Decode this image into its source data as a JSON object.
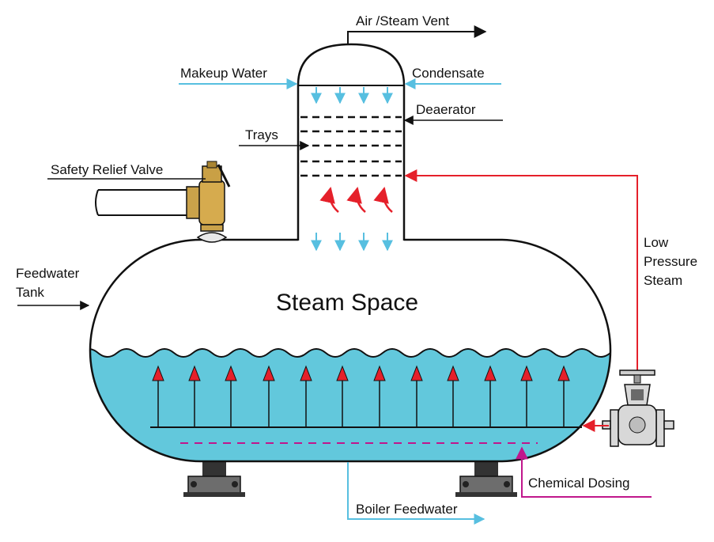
{
  "labels": {
    "air_vent": "Air /Steam Vent",
    "makeup_water": "Makeup Water",
    "condensate": "Condensate",
    "deaerator": "Deaerator",
    "trays": "Trays",
    "safety_valve": "Safety Relief  Valve",
    "feedwater_tank_1": "Feedwater",
    "feedwater_tank_2": "Tank",
    "low_pressure_1": "Low",
    "low_pressure_2": "Pressure",
    "low_pressure_3": "Steam",
    "steam_space": "Steam Space",
    "chemical_dosing": "Chemical Dosing",
    "boiler_feedwater": "Boiler Feedwater"
  },
  "colors": {
    "water": "#62c8dc",
    "water_flow": "#57bfe0",
    "steam": "#e5202a",
    "chemical": "#c0178c",
    "outline": "#111111",
    "valve_brass": "#caa24a",
    "valve_body": "#d8d8d8"
  },
  "icons": {
    "safety_valve": "brass-relief-valve-icon",
    "steam_valve": "globe-valve-icon"
  }
}
